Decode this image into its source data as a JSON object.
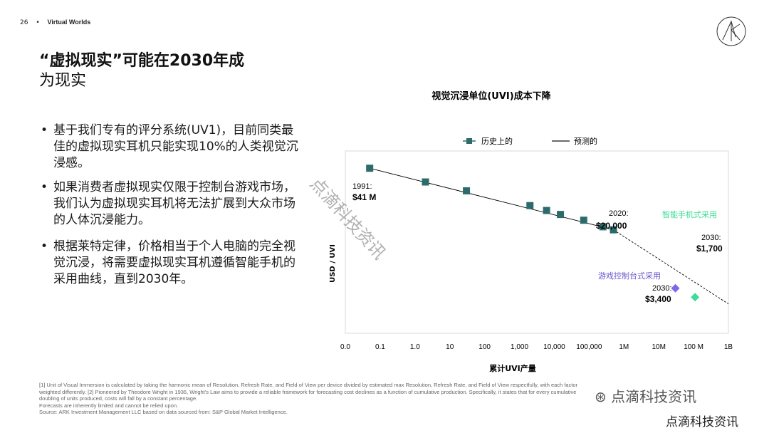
{
  "header": {
    "page_number": "26",
    "separator": "•",
    "section": "Virtual Worlds"
  },
  "title": {
    "line1": "“虚拟现实”可能在2030年成",
    "line2": "为现实"
  },
  "bullets": [
    "基于我们专有的评分系统(UV1)，目前同类最佳的虚拟现实耳机只能实现10%的人类视觉沉浸感。",
    "如果消费者虚拟现实仅限于控制台游戏市场，我们认为虚拟现实耳机将无法扩展到大众市场的人体沉浸能力。",
    "根据莱特定律，价格相当于个人电脑的完全视觉沉浸，将需要虚拟现实耳机遵循智能手机的采用曲线，直到2030年。"
  ],
  "colors": {
    "historical": "#2d6b6b",
    "console": "#7b68ee",
    "smartphone": "#3ddc97",
    "forecast": "#000000",
    "grid": "#d9d9d9"
  },
  "chart_data": {
    "type": "scatter",
    "title": "视觉沉浸单位(UVI)成本下降",
    "xlabel": "累计UVI产量",
    "ylabel": "USD / UVI",
    "x_scale": "log",
    "x_ticks": [
      "0.0",
      "0.1",
      "1.0",
      "10",
      "100",
      "1,000",
      "10,000",
      "100,000",
      "1M",
      "10M",
      "100 M",
      "1B"
    ],
    "legend": [
      "历史上的",
      "预测的"
    ],
    "legend_position": "top",
    "series": [
      {
        "name": "历史上的",
        "marker": "square",
        "points": [
          {
            "x": 0.05,
            "y": 41000000
          },
          {
            "x": 2,
            "y": 14000000
          },
          {
            "x": 30,
            "y": 7000000
          },
          {
            "x": 2000,
            "y": 2200000
          },
          {
            "x": 6000,
            "y": 1500000
          },
          {
            "x": 15000,
            "y": 1100000
          },
          {
            "x": 70000,
            "y": 700000
          },
          {
            "x": 250000,
            "y": 420000
          },
          {
            "x": 500000,
            "y": 330000
          }
        ]
      },
      {
        "name": "预测的",
        "style": "line",
        "points": [
          {
            "x": 0.05,
            "y": 41000000
          },
          {
            "x": 500000,
            "y": 330000
          }
        ],
        "extension_dashed": [
          {
            "x": 500000,
            "y": 330000
          },
          {
            "x": 1000000000,
            "y": 1000
          }
        ]
      },
      {
        "name": "游戏控制台式采用",
        "marker": "diamond",
        "points": [
          {
            "x": 30000000,
            "y": 3400
          }
        ]
      },
      {
        "name": "智能手机式采用",
        "marker": "diamond",
        "points": [
          {
            "x": 110000000,
            "y": 1700
          }
        ]
      }
    ],
    "annotations": {
      "start": {
        "year": "1991:",
        "value": "$41 M"
      },
      "mid": {
        "year": "2020:",
        "value": "$20,000"
      },
      "smartphone_label": "智能手机式采用",
      "smartphone_2030": {
        "year": "2030:",
        "value": "$1,700"
      },
      "console_label": "游戏控制台式采用",
      "console_2030": {
        "year": "2030:",
        "value": "$3,400"
      }
    }
  },
  "footnotes": [
    "[1] Unit of Visual Immersion is calculated by taking the harmonic mean of Resolution, Refresh Rate, and Field of View per device divided by estimated max Resolution, Refresh Rate, and Field of View respectfully, with each factor",
    "weighted differently. [2] Pioneered by Theodore Wright in 1936, Wright’s Law aims to provide a reliable framework for forecasting cost declines as a function of cumulative production. Specifically, it states that for every cumulative",
    "doubling of units produced, costs will fall by a constant percentage.",
    "Forecasts are inherently limited and cannot be relied upon.",
    "Source: ARK Investment Management LLC based on data sourced from: S&P Global Market Intelligence."
  ],
  "watermark": {
    "diagonal": "点滴科技资讯",
    "account_line": "点滴科技资讯",
    "brand_line": "点滴科技资讯"
  }
}
